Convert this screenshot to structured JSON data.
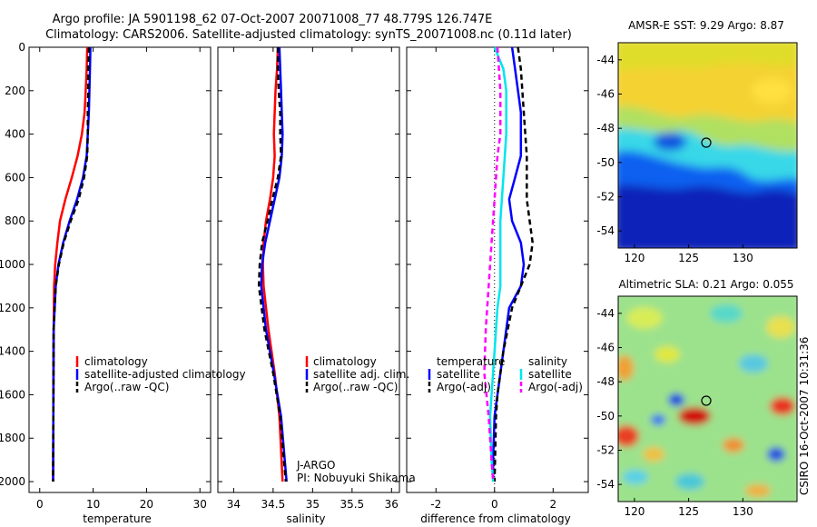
{
  "figure": {
    "title_line1": "Argo profile: JA 5901198_62 07-Oct-2007 20071008_77 48.779S 126.747E",
    "title_line2": "Climatology: CARS2006. Satellite-adjusted climatology: synTS_20071008.nc (0.11d later)",
    "side_stamp": "CSIRO 16-Oct-2007 10:31:36",
    "pi_line1": "J-ARGO",
    "pi_line2": "PI: Nobuyuki Shikama",
    "colors": {
      "climatology": "#ff0000",
      "satellite": "#0000ff",
      "argo": "#000000",
      "sat_salinity": "#00e5ee",
      "argo_adj_salinity": "#ff00ff"
    }
  },
  "chart_data": [
    {
      "type": "line",
      "title": "",
      "xlabel": "temperature",
      "ylabel": "",
      "xlim": [
        -2,
        32
      ],
      "ylim": [
        2050,
        0
      ],
      "xticks": [
        "0",
        "10",
        "20",
        "30"
      ],
      "yticks": [
        "0",
        "200",
        "400",
        "600",
        "800",
        "1000",
        "1200",
        "1400",
        "1600",
        "1800",
        "2000"
      ],
      "legend": [
        "climatology",
        "satellite-adjusted climatology",
        "Argo(..raw -QC)"
      ],
      "series": [
        {
          "name": "climatology",
          "x": [
            8.9,
            8.8,
            8.6,
            8.4,
            7.9,
            7.1,
            6.0,
            4.8,
            3.8,
            3.3,
            2.9,
            2.7,
            2.6,
            2.5
          ],
          "y": [
            0,
            100,
            200,
            300,
            400,
            500,
            600,
            700,
            800,
            900,
            1000,
            1100,
            1300,
            2000
          ]
        },
        {
          "name": "satellite-adjusted climatology",
          "x": [
            9.5,
            9.4,
            9.3,
            9.2,
            9.0,
            8.8,
            8.1,
            7.0,
            5.6,
            4.4,
            3.5,
            3.0,
            2.6,
            2.5
          ],
          "y": [
            0,
            100,
            200,
            300,
            400,
            500,
            600,
            700,
            800,
            900,
            1000,
            1100,
            1300,
            2000
          ]
        },
        {
          "name": "Argo(..raw -QC)",
          "x": [
            9.2,
            9.1,
            9.1,
            9.0,
            9.0,
            8.9,
            8.3,
            7.3,
            5.8,
            4.5,
            3.6,
            3.0,
            2.6,
            2.5
          ],
          "y": [
            0,
            100,
            200,
            300,
            400,
            500,
            600,
            700,
            800,
            900,
            1000,
            1100,
            1300,
            2000
          ]
        }
      ]
    },
    {
      "type": "line",
      "title": "",
      "xlabel": "salinity",
      "ylabel": "",
      "xlim": [
        33.8,
        36.1
      ],
      "ylim": [
        2050,
        0
      ],
      "xticks": [
        "34",
        "34.5",
        "35",
        "35.5",
        "36"
      ],
      "legend": [
        "climatology",
        "satellite adj. clim.",
        "Argo(..raw -QC)"
      ],
      "series": [
        {
          "name": "climatology",
          "x": [
            34.56,
            34.55,
            34.53,
            34.52,
            34.51,
            34.52,
            34.5,
            34.46,
            34.41,
            34.38,
            34.37,
            34.38,
            34.44,
            34.52,
            34.58,
            34.62
          ],
          "y": [
            0,
            100,
            200,
            300,
            400,
            500,
            600,
            700,
            800,
            900,
            1000,
            1100,
            1300,
            1500,
            1700,
            2000
          ]
        },
        {
          "name": "satellite adj. clim.",
          "x": [
            34.58,
            34.59,
            34.6,
            34.61,
            34.62,
            34.61,
            34.58,
            34.52,
            34.46,
            34.4,
            34.36,
            34.35,
            34.41,
            34.51,
            34.6,
            34.67
          ],
          "y": [
            0,
            100,
            200,
            300,
            400,
            500,
            600,
            700,
            800,
            900,
            1000,
            1100,
            1300,
            1500,
            1700,
            2000
          ]
        },
        {
          "name": "Argo(..raw -QC)",
          "x": [
            34.56,
            34.56,
            34.57,
            34.59,
            34.59,
            34.6,
            34.56,
            34.49,
            34.43,
            34.36,
            34.33,
            34.32,
            34.39,
            34.5,
            34.59,
            34.66
          ],
          "y": [
            0,
            100,
            200,
            300,
            400,
            500,
            600,
            700,
            800,
            900,
            1000,
            1100,
            1300,
            1500,
            1700,
            2000
          ]
        }
      ]
    },
    {
      "type": "line",
      "title": "",
      "xlabel": "difference from climatology",
      "ylabel": "",
      "xlim": [
        -3,
        3.2
      ],
      "ylim": [
        2050,
        0
      ],
      "xticks": [
        "-2",
        "0",
        "2"
      ],
      "legend": [
        "temperature",
        "satellite",
        "Argo(-adj)",
        "salinity",
        "satellite",
        "Argo(-adj)"
      ],
      "series": [
        {
          "name": "temperature satellite",
          "x": [
            0.6,
            0.7,
            0.9,
            0.9,
            0.7,
            0.5,
            0.6,
            0.9,
            1.0,
            0.9,
            0.5,
            0.3,
            0.1,
            0.0,
            -0.05,
            -0.05
          ],
          "y": [
            0,
            100,
            300,
            500,
            600,
            700,
            800,
            900,
            1000,
            1100,
            1200,
            1400,
            1600,
            1700,
            1900,
            2000
          ]
        },
        {
          "name": "temperature Argo(-adj)",
          "x": [
            0.8,
            0.9,
            1.0,
            1.1,
            1.1,
            1.1,
            1.2,
            1.3,
            1.2,
            0.9,
            0.6,
            0.3,
            0.1,
            0.05,
            0.0
          ],
          "y": [
            0,
            100,
            300,
            500,
            600,
            700,
            800,
            900,
            1000,
            1100,
            1200,
            1400,
            1600,
            1700,
            2000
          ]
        },
        {
          "name": "salinity satellite",
          "x": [
            0.0,
            0.3,
            0.4,
            0.4,
            0.3,
            0.2,
            0.2,
            0.2,
            0.1,
            0.0,
            -0.1,
            -0.15,
            -0.1,
            -0.05
          ],
          "y": [
            0,
            100,
            200,
            400,
            600,
            800,
            1000,
            1100,
            1200,
            1400,
            1600,
            1700,
            1900,
            2000
          ]
        },
        {
          "name": "salinity Argo(-adj)",
          "x": [
            0.1,
            0.2,
            0.2,
            0.1,
            0.0,
            -0.1,
            -0.2,
            -0.3,
            -0.35,
            -0.2,
            -0.1,
            -0.05
          ],
          "y": [
            0,
            200,
            400,
            500,
            700,
            900,
            1100,
            1300,
            1500,
            1700,
            1900,
            2000
          ]
        }
      ]
    },
    {
      "type": "heatmap",
      "title": "AMSR-E SST: 9.29 Argo: 8.87",
      "xticks": [
        "120",
        "125",
        "130"
      ],
      "yticks": [
        "-44",
        "-46",
        "-48",
        "-50",
        "-52",
        "-54"
      ],
      "xlim": [
        118.5,
        135
      ],
      "ylim": [
        -55,
        -43
      ],
      "marker": {
        "lon": 126.747,
        "lat": -48.779
      }
    },
    {
      "type": "heatmap",
      "title": "Altimetric SLA: 0.21 Argo: 0.055",
      "xticks": [
        "120",
        "125",
        "130"
      ],
      "yticks": [
        "-44",
        "-46",
        "-48",
        "-50",
        "-52",
        "-54"
      ],
      "xlim": [
        118.5,
        135
      ],
      "ylim": [
        -55,
        -43
      ],
      "marker": {
        "lon": 126.747,
        "lat": -48.779
      }
    }
  ]
}
